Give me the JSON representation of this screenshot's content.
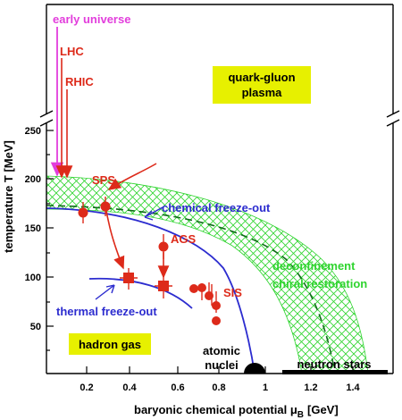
{
  "axes": {
    "xlabel_main": "baryonic chemical potential μ",
    "xlabel_sub": "B",
    "xlabel_unit": "[GeV]",
    "ylabel": "temperature T [MeV]",
    "x_ticks": [
      "0.2",
      "0.4",
      "0.6",
      "0.8",
      "1",
      "1.2",
      "1.4"
    ],
    "y_ticks": [
      "50",
      "100",
      "150",
      "200",
      "250"
    ]
  },
  "labels": {
    "early_universe": "early universe",
    "lhc": "LHC",
    "rhic": "RHIC",
    "sps": "SPS",
    "ags": "AGS",
    "sis": "SIS",
    "chemical_freezeout": "chemical freeze-out",
    "thermal_freezeout": "thermal freeze-out",
    "deconfinement": "deconfinement",
    "chiral_restoration": "chiral restoration",
    "qgp_line1": "quark-gluon",
    "qgp_line2": "plasma",
    "hadron_gas": "hadron gas",
    "atomic_line1": "atomic",
    "atomic_line2": "nuclei",
    "neutron_stars": "neutron stars"
  },
  "colors": {
    "red": "#dd2a1a",
    "blue": "#2c2ccf",
    "green": "#2fd42f",
    "dark_green": "#0f6b19",
    "magenta": "#e23ddc",
    "yellow_box": "#e7f000",
    "black": "#000000"
  },
  "chart_data": {
    "type": "scatter",
    "xlim": [
      0,
      1.6
    ],
    "ylim": [
      0,
      260
    ],
    "chemical_freezeout_points": [
      {
        "x": 0.17,
        "y": 165
      },
      {
        "x": 0.27,
        "y": 171
      },
      {
        "x": 0.54,
        "y": 130
      },
      {
        "x": 0.68,
        "y": 91
      },
      {
        "x": 0.72,
        "y": 91
      },
      {
        "x": 0.75,
        "y": 83
      },
      {
        "x": 0.78,
        "y": 72
      },
      {
        "x": 0.78,
        "y": 57
      }
    ],
    "thermal_freezeout_points": [
      {
        "x": 0.38,
        "y": 100
      },
      {
        "x": 0.54,
        "y": 93
      }
    ]
  }
}
